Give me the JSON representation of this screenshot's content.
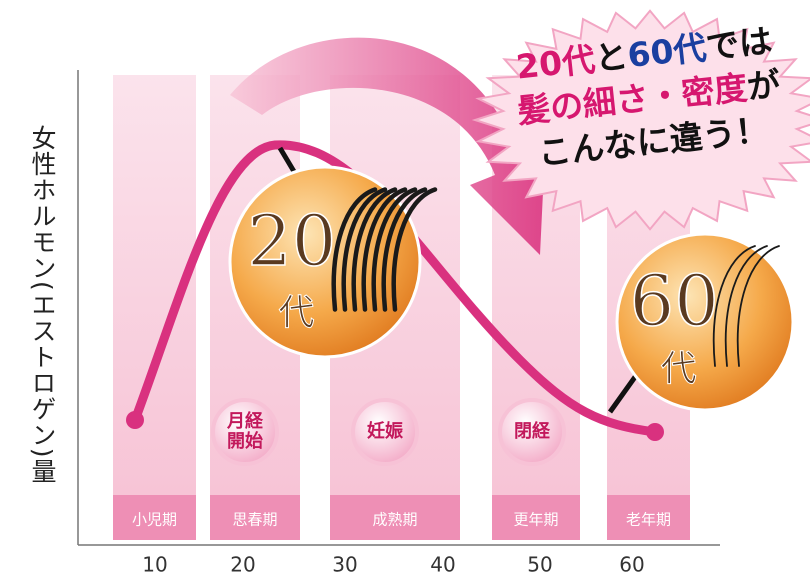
{
  "y_axis_label": "女性ホルモン(エストロゲン)量",
  "x_ticks": [
    "10",
    "20",
    "30",
    "40",
    "50",
    "60"
  ],
  "stages": [
    "小児期",
    "思春期",
    "成熟期",
    "更年期",
    "老年期"
  ],
  "events": [
    [
      "月経",
      "開始"
    ],
    [
      "妊娠"
    ],
    [
      "閉経"
    ]
  ],
  "callout": {
    "lines": [
      [
        {
          "text": "20代",
          "color": "#d6176f"
        },
        {
          "text": "と",
          "color": "#111"
        },
        {
          "text": "60代",
          "color": "#1a3fa0"
        },
        {
          "text": "では",
          "color": "#111"
        }
      ],
      [
        {
          "text": "髪の細さ・密度",
          "color": "#d6176f"
        },
        {
          "text": "が",
          "color": "#111"
        }
      ],
      [
        {
          "text": "こんなに違う！",
          "color": "#111"
        }
      ]
    ]
  },
  "circles": [
    {
      "age": "20",
      "unit": "代"
    },
    {
      "age": "60",
      "unit": "代"
    }
  ]
}
